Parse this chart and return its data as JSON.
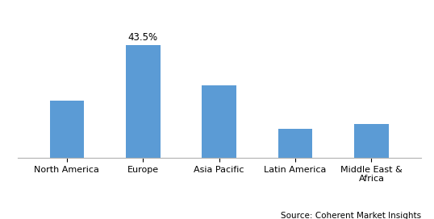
{
  "categories": [
    "North America",
    "Europe",
    "Asia Pacific",
    "Latin America",
    "Middle East &\nAfrica"
  ],
  "values": [
    22,
    43.5,
    28,
    11,
    13
  ],
  "bar_color": "#5b9bd5",
  "annotation_bar": 1,
  "annotation_text": "43.5%",
  "annotation_fontsize": 8.5,
  "ylim": [
    0,
    55
  ],
  "background_color": "#ffffff",
  "source_text": "Source: Coherent Market Insights",
  "source_fontsize": 7.5,
  "bar_width": 0.45,
  "tick_fontsize": 8,
  "figsize": [
    5.38,
    2.72
  ],
  "dpi": 100,
  "border_color": "#c0c0c0",
  "bottom_line_color": "#b0b0b0"
}
